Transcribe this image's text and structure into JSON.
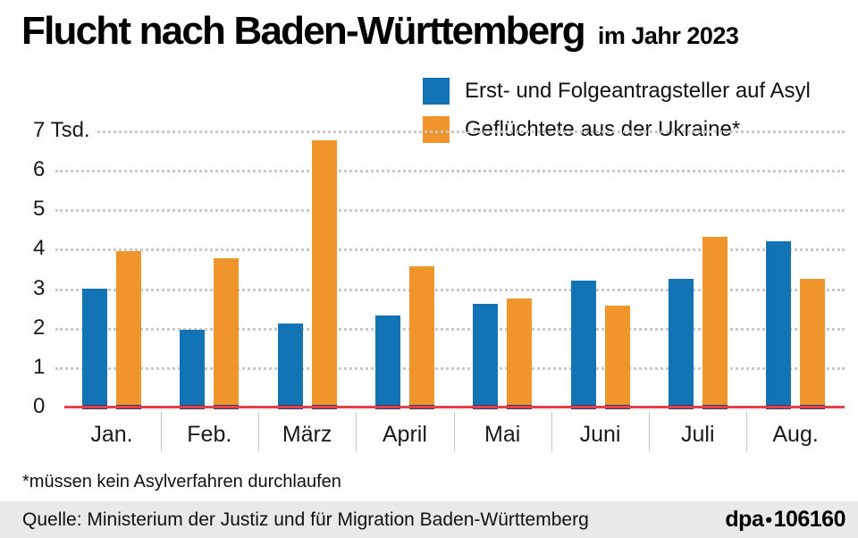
{
  "header": {
    "title": "Flucht nach Baden-Württemberg",
    "subtitle": "im Jahr 2023"
  },
  "legend": [
    {
      "label": "Erst- und Folgeantragsteller auf Asyl",
      "color": "#1274b5"
    },
    {
      "label": "Geflüchtete aus der Ukraine*",
      "color": "#f0952b"
    }
  ],
  "chart_data": {
    "type": "bar",
    "title": "Flucht nach Baden-Württemberg im Jahr 2023",
    "categories": [
      "Jan.",
      "Feb.",
      "März",
      "April",
      "Mai",
      "Juni",
      "Juli",
      "Aug."
    ],
    "series": [
      {
        "name": "Erst- und Folgeantragsteller auf Asyl",
        "color": "#1274b5",
        "values": [
          3.0,
          1.95,
          2.1,
          2.3,
          2.6,
          3.2,
          3.25,
          4.2
        ]
      },
      {
        "name": "Geflüchtete aus der Ukraine*",
        "color": "#f0952b",
        "values": [
          3.95,
          3.75,
          6.75,
          3.55,
          2.75,
          2.55,
          4.3,
          3.25
        ]
      }
    ],
    "unit": "Tsd.",
    "ylim": [
      0,
      7
    ],
    "y_axis": {
      "ticks": [
        {
          "label": "7 Tsd.",
          "value": 7
        },
        {
          "label": "6",
          "value": 6
        },
        {
          "label": "5",
          "value": 5
        },
        {
          "label": "4",
          "value": 4
        },
        {
          "label": "3",
          "value": 3
        },
        {
          "label": "2",
          "value": 2
        },
        {
          "label": "1",
          "value": 1
        },
        {
          "label": "0",
          "value": 0
        }
      ]
    },
    "grid": "horizontal-dotted",
    "baseline_color": "#e4404a",
    "legend_position": "top-right"
  },
  "footnote": "*müssen kein Asylverfahren durchlaufen",
  "footer": {
    "source": "Quelle: Ministerium der Justiz und für Migration Baden-Württemberg",
    "credit": "dpa",
    "separator": "•",
    "credit_id": "106160"
  }
}
